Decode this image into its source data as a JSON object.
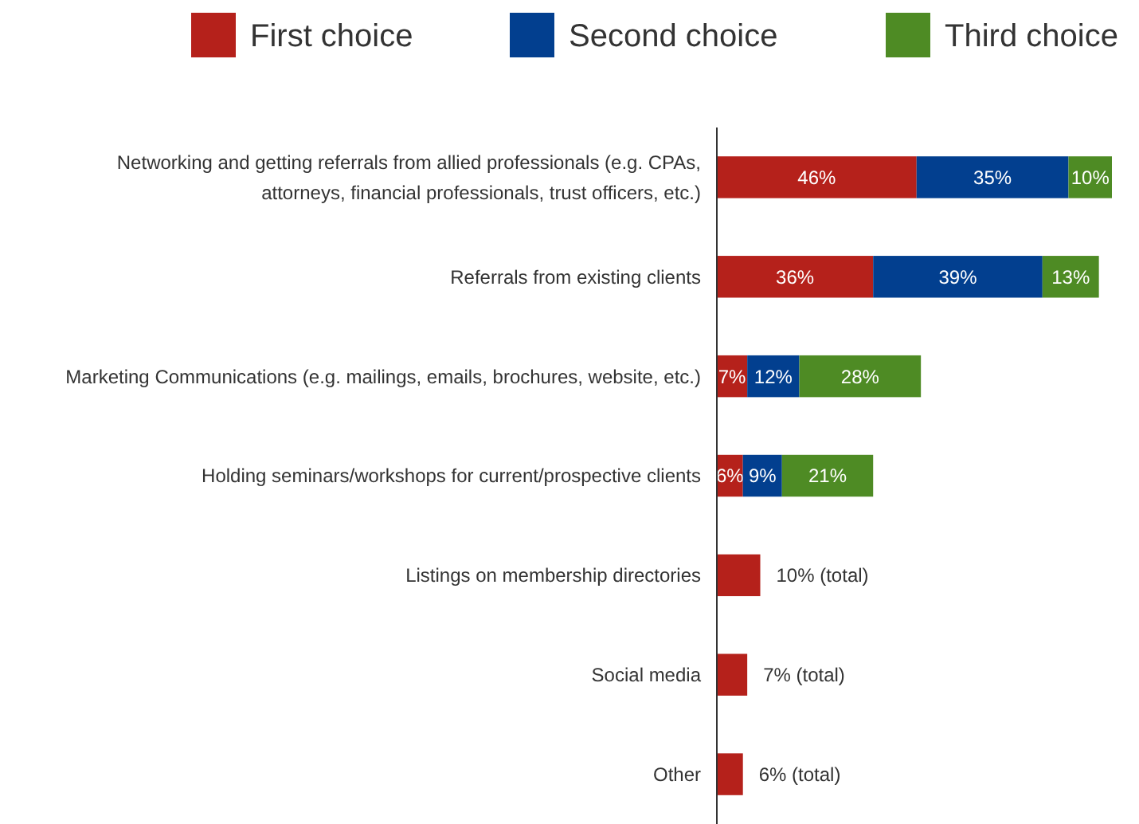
{
  "chart_data": {
    "type": "bar",
    "orientation": "horizontal",
    "stacked": true,
    "legend": "top",
    "categories": [
      "Networking and getting referrals from allied professionals (e.g. CPAs, attorneys, financial professionals, trust officers, etc.)",
      "Referrals from existing clients",
      "Marketing Communications (e.g. mailings, emails, brochures, website, etc.)",
      "Holding seminars/workshops for current/prospective clients",
      "Listings on membership directories",
      "Social media",
      "Other"
    ],
    "series": [
      {
        "name": "First choice",
        "color": "#b5211b",
        "values": [
          46,
          36,
          7,
          6,
          10,
          7,
          6
        ],
        "value_labels": [
          "46%",
          "36%",
          "7%",
          "6%",
          "10% (total)",
          "7% (total)",
          "6% (total)"
        ]
      },
      {
        "name": "Second choice",
        "color": "#023f8f",
        "values": [
          35,
          39,
          12,
          9,
          null,
          null,
          null
        ],
        "value_labels": [
          "35%",
          "39%",
          "12%",
          "9%",
          null,
          null,
          null
        ]
      },
      {
        "name": "Third choice",
        "color": "#4e8b24",
        "values": [
          10,
          13,
          28,
          21,
          null,
          null,
          null
        ],
        "value_labels": [
          "10%",
          "13%",
          "28%",
          "21%",
          null,
          null,
          null
        ]
      }
    ]
  }
}
